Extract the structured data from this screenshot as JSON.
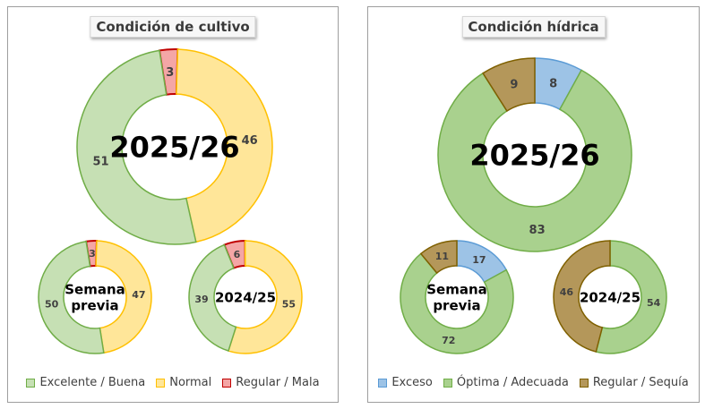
{
  "colors": {
    "excelente_buena": {
      "fill": "#c6e0b4",
      "stroke": "#70ad47"
    },
    "normal": {
      "fill": "#ffe699",
      "stroke": "#ffc000"
    },
    "regular_mala": {
      "fill": "#f4a6a6",
      "stroke": "#c00000"
    },
    "exceso": {
      "fill": "#9dc3e6",
      "stroke": "#5b9bd5"
    },
    "optima_adecuada": {
      "fill": "#a9d18e",
      "stroke": "#70ad47"
    },
    "regular_sequia": {
      "fill": "#b4975a",
      "stroke": "#7f6000"
    }
  },
  "chart_data": [
    {
      "type": "pie",
      "title": "Condición de cultivo",
      "legend": [
        "Excelente / Buena",
        "Normal",
        "Regular / Mala"
      ],
      "legend_keys": [
        "excelente_buena",
        "normal",
        "regular_mala"
      ],
      "donuts": [
        {
          "center_label": "2025/26",
          "values": {
            "excelente_buena": 51,
            "normal": 46,
            "regular_mala": 3
          }
        },
        {
          "center_label": "Semana previa",
          "values": {
            "excelente_buena": 50,
            "normal": 47,
            "regular_mala": 3
          }
        },
        {
          "center_label": "2024/25",
          "values": {
            "excelente_buena": 39,
            "normal": 55,
            "regular_mala": 6
          }
        }
      ]
    },
    {
      "type": "pie",
      "title": "Condición hídrica",
      "legend": [
        "Exceso",
        "Óptima / Adecuada",
        "Regular / Sequía"
      ],
      "legend_keys": [
        "exceso",
        "optima_adecuada",
        "regular_sequia"
      ],
      "donuts": [
        {
          "center_label": "2025/26",
          "values": {
            "exceso": 8,
            "optima_adecuada": 83,
            "regular_sequia": 9
          }
        },
        {
          "center_label": "Semana previa",
          "values": {
            "exceso": 17,
            "optima_adecuada": 72,
            "regular_sequia": 11
          }
        },
        {
          "center_label": "2024/25",
          "values": {
            "exceso": 0,
            "optima_adecuada": 54,
            "regular_sequia": 46
          }
        }
      ]
    }
  ]
}
